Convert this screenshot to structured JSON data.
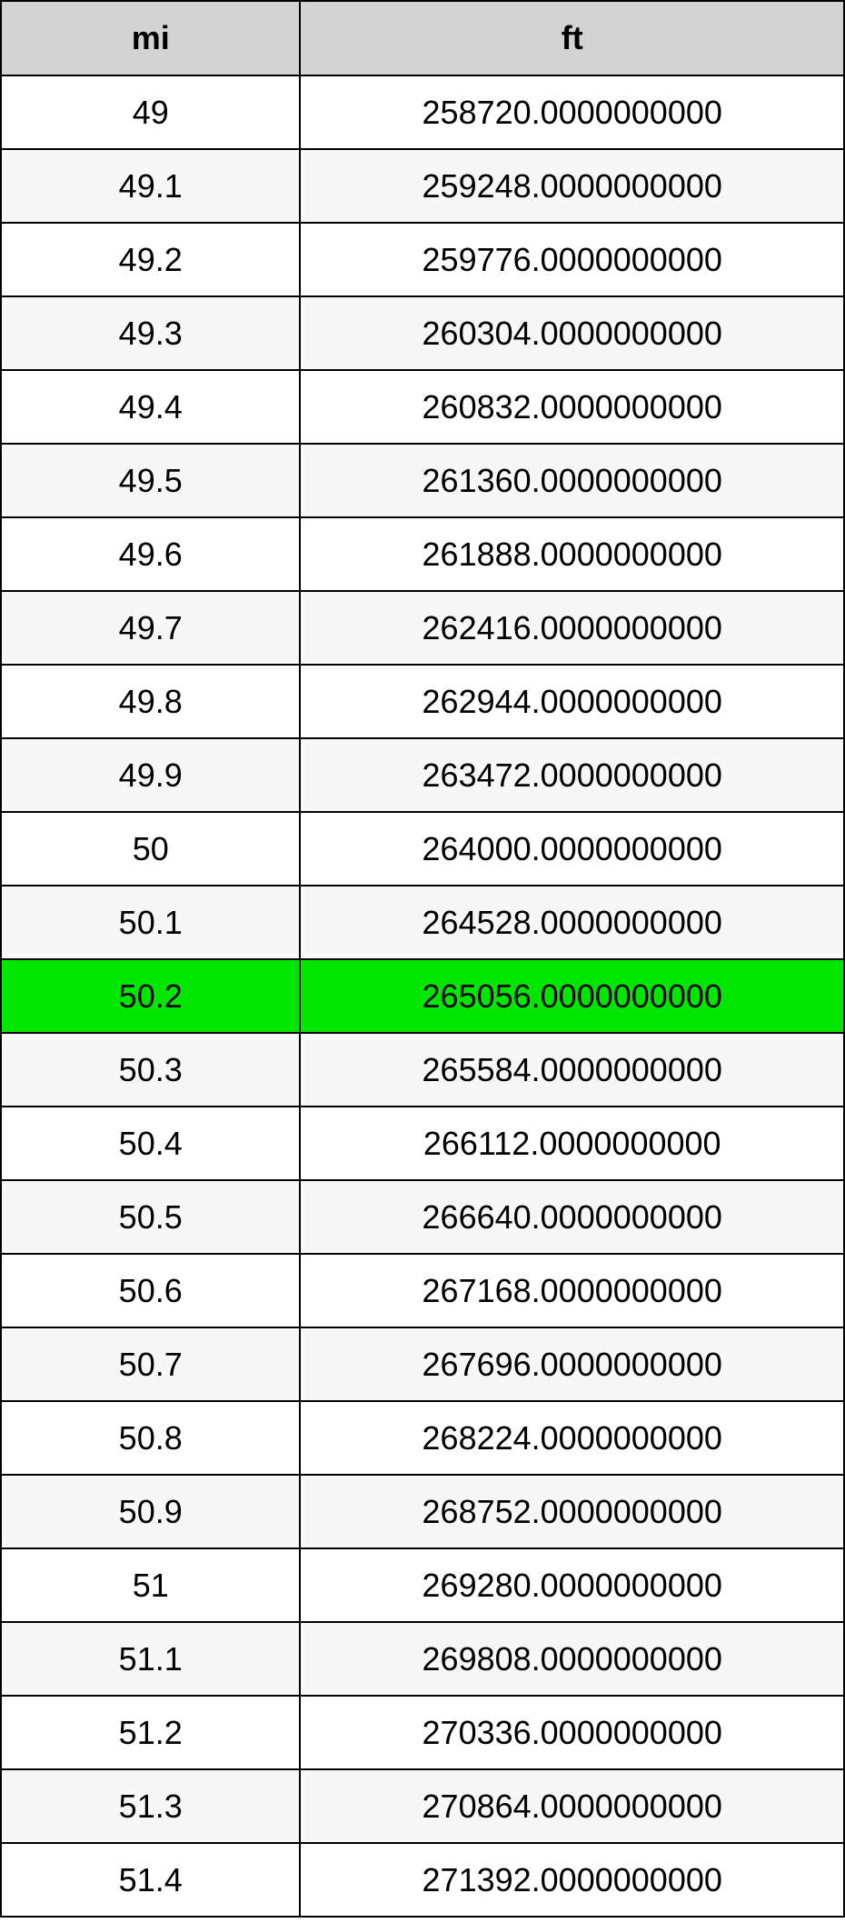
{
  "table": {
    "columns": [
      "mi",
      "ft"
    ],
    "column_widths_pct": [
      35.5,
      64.5
    ],
    "header_bg": "#d3d3d3",
    "header_fontsize": 36,
    "header_fontweight": "bold",
    "cell_fontsize": 36,
    "border_color": "#000000",
    "row_bg_odd": "#ffffff",
    "row_bg_even": "#f7f7f7",
    "highlight_bg": "#00e600",
    "highlight_index": 12,
    "rows": [
      {
        "mi": "49",
        "ft": "258720.0000000000"
      },
      {
        "mi": "49.1",
        "ft": "259248.0000000000"
      },
      {
        "mi": "49.2",
        "ft": "259776.0000000000"
      },
      {
        "mi": "49.3",
        "ft": "260304.0000000000"
      },
      {
        "mi": "49.4",
        "ft": "260832.0000000000"
      },
      {
        "mi": "49.5",
        "ft": "261360.0000000000"
      },
      {
        "mi": "49.6",
        "ft": "261888.0000000000"
      },
      {
        "mi": "49.7",
        "ft": "262416.0000000000"
      },
      {
        "mi": "49.8",
        "ft": "262944.0000000000"
      },
      {
        "mi": "49.9",
        "ft": "263472.0000000000"
      },
      {
        "mi": "50",
        "ft": "264000.0000000000"
      },
      {
        "mi": "50.1",
        "ft": "264528.0000000000"
      },
      {
        "mi": "50.2",
        "ft": "265056.0000000000"
      },
      {
        "mi": "50.3",
        "ft": "265584.0000000000"
      },
      {
        "mi": "50.4",
        "ft": "266112.0000000000"
      },
      {
        "mi": "50.5",
        "ft": "266640.0000000000"
      },
      {
        "mi": "50.6",
        "ft": "267168.0000000000"
      },
      {
        "mi": "50.7",
        "ft": "267696.0000000000"
      },
      {
        "mi": "50.8",
        "ft": "268224.0000000000"
      },
      {
        "mi": "50.9",
        "ft": "268752.0000000000"
      },
      {
        "mi": "51",
        "ft": "269280.0000000000"
      },
      {
        "mi": "51.1",
        "ft": "269808.0000000000"
      },
      {
        "mi": "51.2",
        "ft": "270336.0000000000"
      },
      {
        "mi": "51.3",
        "ft": "270864.0000000000"
      },
      {
        "mi": "51.4",
        "ft": "271392.0000000000"
      }
    ]
  }
}
